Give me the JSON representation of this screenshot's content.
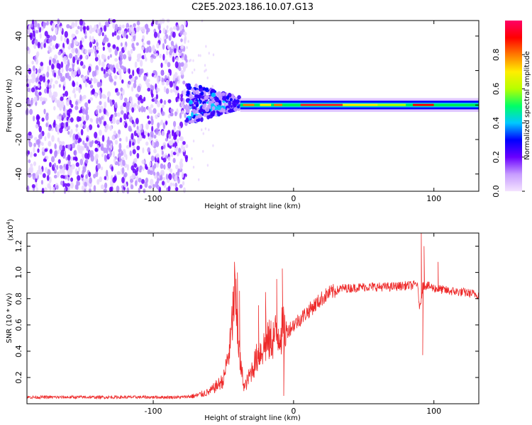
{
  "title": "C2E5.2023.186.10.07.G13",
  "chart_data": [
    {
      "type": "heatmap",
      "xlabel": "Height of straight line (km)",
      "ylabel": "Frequency (Hz)",
      "xlim": [
        -190,
        132
      ],
      "ylim": [
        -50,
        49
      ],
      "x_ticks": [
        -100,
        0,
        100
      ],
      "y_ticks": [
        -40,
        -20,
        0,
        20,
        40
      ],
      "colorbar": {
        "label": "Normalized spectral amplitude",
        "range": [
          0,
          1
        ],
        "ticks": [
          0.0,
          0.2,
          0.4,
          0.6,
          0.8
        ],
        "colors": [
          "#f4e4ff",
          "#c79cff",
          "#6a00ff",
          "#0000ff",
          "#00c8ff",
          "#00ff66",
          "#b6ff00",
          "#ffee00",
          "#ff7a00",
          "#ff0000",
          "#ff0066"
        ]
      },
      "features": [
        {
          "name": "noise",
          "x_range": [
            -190,
            -76
          ],
          "freq_range": [
            -50,
            49
          ],
          "amplitude": 0.15
        },
        {
          "name": "scatter",
          "x_range": [
            -76,
            -38
          ],
          "freq_range": [
            -12,
            8
          ],
          "amplitude": 0.35
        },
        {
          "name": "carrier",
          "x_range": [
            -38,
            132
          ],
          "center_freq": 0,
          "half_width": 2.5,
          "peak_amplitude": 0.95
        }
      ]
    },
    {
      "type": "line",
      "xlabel": "Height of straight line (km)",
      "ylabel": "SNR (10 * v/v)",
      "y_scale_label": "(x10",
      "y_scale_exp": "4",
      "xlim": [
        -190,
        132
      ],
      "ylim": [
        0,
        1.3
      ],
      "x_ticks": [
        -100,
        0,
        100
      ],
      "y_ticks": [
        0.2,
        0.4,
        0.6,
        0.8,
        1.0,
        1.2
      ],
      "color": "#ee2a2a",
      "series": [
        {
          "x": [
            -190,
            -160,
            -130,
            -100,
            -80,
            -70,
            -60,
            -50,
            -45,
            -42,
            -38,
            -35,
            -30,
            -25,
            -20,
            -15,
            -10,
            -5,
            0,
            5,
            10,
            15,
            20,
            25,
            30,
            35,
            40,
            50,
            60,
            70,
            80,
            85,
            88,
            90,
            92,
            95,
            100,
            110,
            120,
            132
          ],
          "y": [
            0.05,
            0.05,
            0.05,
            0.05,
            0.05,
            0.06,
            0.09,
            0.18,
            0.45,
            0.85,
            0.3,
            0.12,
            0.25,
            0.38,
            0.45,
            0.5,
            0.55,
            0.55,
            0.6,
            0.65,
            0.7,
            0.75,
            0.8,
            0.84,
            0.86,
            0.88,
            0.88,
            0.89,
            0.89,
            0.89,
            0.9,
            0.9,
            0.92,
            0.72,
            0.9,
            0.9,
            0.88,
            0.86,
            0.85,
            0.83
          ]
        }
      ],
      "spikes": [
        {
          "x": -40,
          "y": 1.0
        },
        {
          "x": -38.5,
          "y": 0.86
        },
        {
          "x": -25,
          "y": 0.75
        },
        {
          "x": -20,
          "y": 0.85
        },
        {
          "x": -12,
          "y": 0.95
        },
        {
          "x": -8,
          "y": 1.03
        },
        {
          "x": -7,
          "y": 0.06
        },
        {
          "x": 91,
          "y": 1.3
        },
        {
          "x": 92,
          "y": 0.37
        },
        {
          "x": 93,
          "y": 1.2
        },
        {
          "x": 103,
          "y": 1.08
        }
      ]
    }
  ]
}
